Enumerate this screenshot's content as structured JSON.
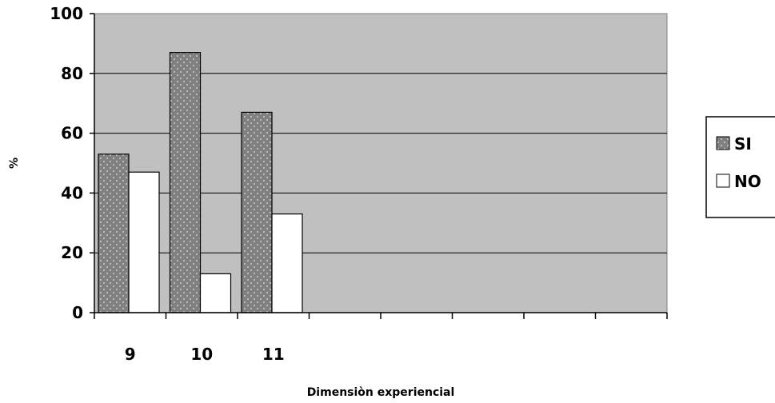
{
  "chart_data": {
    "type": "bar",
    "title": "",
    "xlabel": "Dimensiòn experiencial",
    "ylabel": "%",
    "ylim": [
      0,
      100
    ],
    "yticks": [
      "0",
      "20",
      "40",
      "60",
      "80",
      "100"
    ],
    "categories": [
      "9",
      "10",
      "11",
      "",
      "",
      "",
      "",
      ""
    ],
    "series": [
      {
        "name": "SI",
        "values": [
          53,
          87,
          67,
          null,
          null,
          null,
          null,
          null
        ],
        "color": "#808080",
        "pattern": "dotted"
      },
      {
        "name": "NO",
        "values": [
          47,
          13,
          33,
          null,
          null,
          null,
          null,
          null
        ],
        "color": "#ffffff"
      }
    ],
    "grid": true,
    "plot_background": "#c0c0c0",
    "legend_position": "right"
  }
}
